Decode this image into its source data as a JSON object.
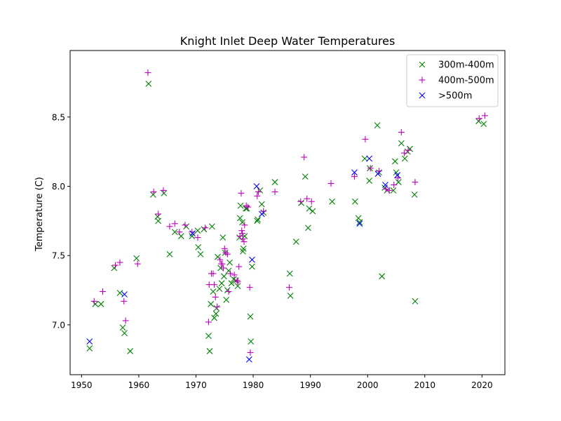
{
  "chart_data": {
    "type": "scatter",
    "title": "Knight Inlet Deep Water Temperatures",
    "xlabel": "",
    "ylabel": "Temperature (C)",
    "xlim": [
      1948,
      2024
    ],
    "ylim": [
      6.64,
      8.98
    ],
    "x_ticks": [
      1950,
      1960,
      1970,
      1980,
      1990,
      2000,
      2010,
      2020
    ],
    "y_ticks": [
      7.0,
      7.5,
      8.0,
      8.5
    ],
    "x_tick_labels": [
      "1950",
      "1960",
      "1970",
      "1980",
      "1990",
      "2000",
      "2010",
      "2020"
    ],
    "y_tick_labels": [
      "7.0",
      "7.5",
      "8.0",
      "8.5"
    ],
    "grid": false,
    "legend_position": "top-right",
    "series": [
      {
        "name": "300m-400m",
        "marker": "x",
        "color": "#008000",
        "points": [
          [
            1951.4,
            6.83
          ],
          [
            1952.4,
            7.15
          ],
          [
            1953.4,
            7.15
          ],
          [
            1955.7,
            7.41
          ],
          [
            1956.7,
            7.23
          ],
          [
            1957.2,
            6.98
          ],
          [
            1957.5,
            6.94
          ],
          [
            1958.5,
            6.81
          ],
          [
            1959.6,
            7.48
          ],
          [
            1961.7,
            8.74
          ],
          [
            1962.5,
            7.94
          ],
          [
            1963.3,
            7.78
          ],
          [
            1963.4,
            7.75
          ],
          [
            1964.4,
            7.95
          ],
          [
            1965.4,
            7.51
          ],
          [
            1966.3,
            7.67
          ],
          [
            1967.4,
            7.64
          ],
          [
            1968.3,
            7.71
          ],
          [
            1969.3,
            7.64
          ],
          [
            1970.3,
            7.68
          ],
          [
            1970.4,
            7.56
          ],
          [
            1970.8,
            7.51
          ],
          [
            1971.4,
            7.69
          ],
          [
            1972.2,
            6.92
          ],
          [
            1972.4,
            6.81
          ],
          [
            1972.6,
            7.15
          ],
          [
            1972.8,
            7.71
          ],
          [
            1973.0,
            7.24
          ],
          [
            1973.2,
            7.05
          ],
          [
            1973.5,
            7.08
          ],
          [
            1973.6,
            7.12
          ],
          [
            1973.8,
            7.49
          ],
          [
            1974.1,
            7.26
          ],
          [
            1974.3,
            7.41
          ],
          [
            1974.5,
            7.3
          ],
          [
            1974.7,
            7.63
          ],
          [
            1974.9,
            7.35
          ],
          [
            1975.1,
            7.52
          ],
          [
            1975.3,
            7.18
          ],
          [
            1975.5,
            7.25
          ],
          [
            1975.7,
            7.39
          ],
          [
            1975.9,
            7.45
          ],
          [
            1976.2,
            7.3
          ],
          [
            1976.6,
            7.33
          ],
          [
            1977.0,
            7.32
          ],
          [
            1977.3,
            7.28
          ],
          [
            1977.6,
            7.63
          ],
          [
            1977.7,
            7.77
          ],
          [
            1977.8,
            7.86
          ],
          [
            1978.1,
            7.74
          ],
          [
            1978.2,
            7.53
          ],
          [
            1978.3,
            7.55
          ],
          [
            1978.5,
            7.64
          ],
          [
            1978.7,
            7.84
          ],
          [
            1978.9,
            7.84
          ],
          [
            1979.5,
            7.06
          ],
          [
            1979.6,
            6.88
          ],
          [
            1979.8,
            7.42
          ],
          [
            1980.7,
            7.75
          ],
          [
            1980.8,
            7.76
          ],
          [
            1981.2,
            7.97
          ],
          [
            1981.5,
            7.87
          ],
          [
            1981.8,
            7.81
          ],
          [
            1983.8,
            8.03
          ],
          [
            1986.4,
            7.37
          ],
          [
            1986.5,
            7.21
          ],
          [
            1987.5,
            7.6
          ],
          [
            1988.4,
            7.88
          ],
          [
            1989.1,
            8.07
          ],
          [
            1989.6,
            7.7
          ],
          [
            1989.8,
            7.84
          ],
          [
            1990.4,
            7.82
          ],
          [
            1993.8,
            7.89
          ],
          [
            1997.8,
            7.89
          ],
          [
            1998.4,
            7.77
          ],
          [
            1998.6,
            7.74
          ],
          [
            1999.5,
            8.2
          ],
          [
            2000.3,
            8.04
          ],
          [
            2000.4,
            8.13
          ],
          [
            2001.7,
            8.44
          ],
          [
            2002.0,
            8.1
          ],
          [
            2002.5,
            7.35
          ],
          [
            2003.0,
            7.99
          ],
          [
            2003.4,
            7.97
          ],
          [
            2004.5,
            7.97
          ],
          [
            2004.8,
            8.18
          ],
          [
            2005.0,
            8.1
          ],
          [
            2005.4,
            8.03
          ],
          [
            2005.9,
            8.31
          ],
          [
            2006.5,
            8.2
          ],
          [
            2007.0,
            8.25
          ],
          [
            2007.4,
            8.27
          ],
          [
            2008.2,
            7.94
          ],
          [
            2008.3,
            7.17
          ],
          [
            2019.4,
            8.47
          ],
          [
            2020.3,
            8.45
          ]
        ]
      },
      {
        "name": "400m-500m",
        "marker": "+",
        "color": "#bf00bf",
        "points": [
          [
            1952.2,
            7.17
          ],
          [
            1953.7,
            7.24
          ],
          [
            1955.9,
            7.43
          ],
          [
            1956.7,
            7.45
          ],
          [
            1957.4,
            7.17
          ],
          [
            1957.7,
            7.03
          ],
          [
            1959.8,
            7.44
          ],
          [
            1961.6,
            8.82
          ],
          [
            1962.6,
            7.96
          ],
          [
            1963.4,
            7.8
          ],
          [
            1964.3,
            7.97
          ],
          [
            1965.4,
            7.71
          ],
          [
            1966.3,
            7.73
          ],
          [
            1967.1,
            7.67
          ],
          [
            1968.1,
            7.72
          ],
          [
            1969.3,
            7.67
          ],
          [
            1970.3,
            7.63
          ],
          [
            1971.6,
            7.7
          ],
          [
            1972.2,
            7.02
          ],
          [
            1972.3,
            7.29
          ],
          [
            1972.7,
            7.37
          ],
          [
            1973.0,
            7.37
          ],
          [
            1973.2,
            7.29
          ],
          [
            1973.4,
            7.2
          ],
          [
            1973.7,
            7.13
          ],
          [
            1974.2,
            7.47
          ],
          [
            1974.4,
            7.44
          ],
          [
            1974.6,
            7.44
          ],
          [
            1974.8,
            7.41
          ],
          [
            1975.0,
            7.55
          ],
          [
            1975.2,
            7.52
          ],
          [
            1975.5,
            7.51
          ],
          [
            1975.7,
            7.24
          ],
          [
            1976.0,
            7.37
          ],
          [
            1976.7,
            7.36
          ],
          [
            1977.2,
            7.32
          ],
          [
            1977.3,
            7.31
          ],
          [
            1977.5,
            7.42
          ],
          [
            1977.7,
            7.64
          ],
          [
            1977.9,
            7.95
          ],
          [
            1978.0,
            7.68
          ],
          [
            1978.1,
            7.66
          ],
          [
            1978.2,
            7.62
          ],
          [
            1978.4,
            7.6
          ],
          [
            1978.5,
            7.72
          ],
          [
            1978.8,
            7.86
          ],
          [
            1979.1,
            7.85
          ],
          [
            1979.4,
            7.27
          ],
          [
            1979.5,
            6.8
          ],
          [
            1980.7,
            7.93
          ],
          [
            1980.9,
            7.96
          ],
          [
            1981.8,
            7.82
          ],
          [
            1983.8,
            7.96
          ],
          [
            1986.3,
            7.27
          ],
          [
            1988.3,
            7.89
          ],
          [
            1988.9,
            8.21
          ],
          [
            1989.4,
            7.91
          ],
          [
            1990.2,
            7.89
          ],
          [
            1993.6,
            8.02
          ],
          [
            1997.7,
            8.07
          ],
          [
            1999.6,
            8.34
          ],
          [
            2000.5,
            8.13
          ],
          [
            2002.0,
            8.11
          ],
          [
            2003.2,
            7.98
          ],
          [
            2003.8,
            7.97
          ],
          [
            2004.6,
            8.01
          ],
          [
            2005.3,
            8.06
          ],
          [
            2005.9,
            8.39
          ],
          [
            2006.4,
            8.24
          ],
          [
            2007.1,
            8.26
          ],
          [
            2008.3,
            8.03
          ],
          [
            2019.5,
            8.49
          ],
          [
            2020.5,
            8.51
          ]
        ]
      },
      {
        "name": ">500m",
        "marker": "x",
        "color": "#0000ff",
        "points": [
          [
            1951.4,
            6.88
          ],
          [
            1957.5,
            7.22
          ],
          [
            1969.4,
            7.66
          ],
          [
            1979.3,
            6.75
          ],
          [
            1979.8,
            7.47
          ],
          [
            1980.6,
            8.0
          ],
          [
            1981.5,
            7.8
          ],
          [
            1997.7,
            8.1
          ],
          [
            1998.6,
            7.73
          ],
          [
            2000.3,
            8.2
          ],
          [
            2001.8,
            8.09
          ],
          [
            2003.1,
            8.01
          ],
          [
            2005.2,
            8.08
          ]
        ]
      }
    ]
  }
}
